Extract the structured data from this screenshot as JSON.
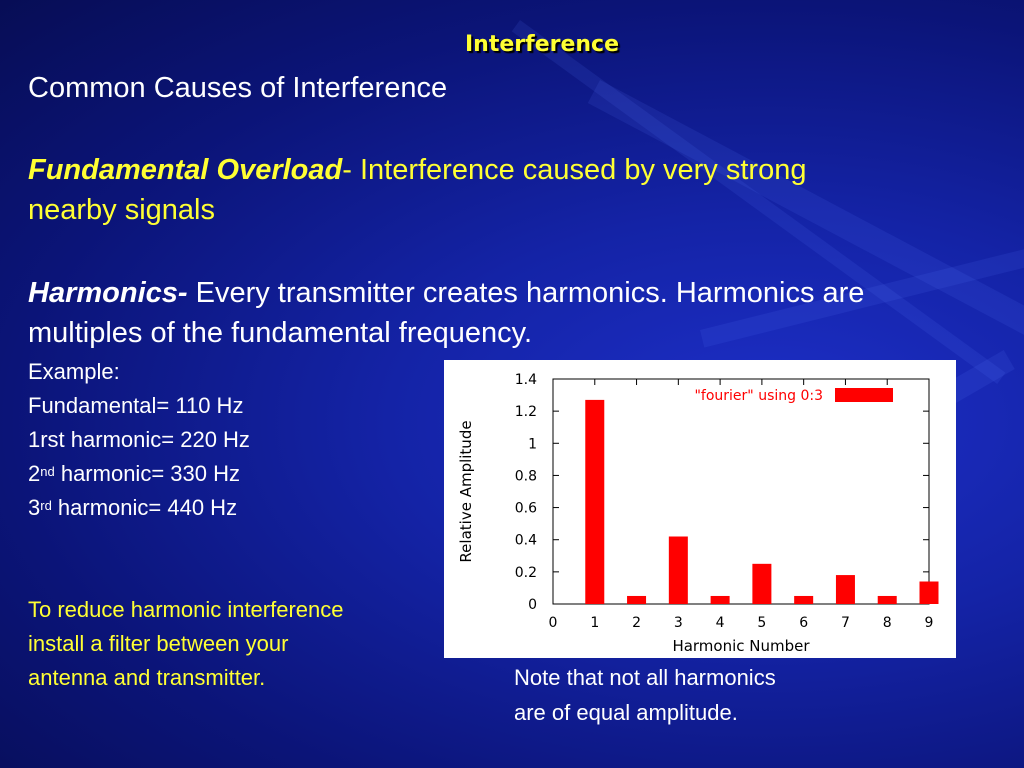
{
  "slide": {
    "title": "Interference",
    "heading": "Common Causes of Interference",
    "fundamental_overload": {
      "term": "Fundamental Overload",
      "text_line1": "- Interference caused by very strong",
      "text_line2": "nearby signals"
    },
    "harmonics": {
      "term": "Harmonics-",
      "text_line1": " Every transmitter creates harmonics. Harmonics are",
      "text_line2": "multiples of the fundamental frequency."
    },
    "example": {
      "label": "Example:",
      "fundamental": "Fundamental= 110 Hz",
      "first": "1rst harmonic= 220 Hz",
      "second_num": "2",
      "second_sup": "nd",
      "second_rest": " harmonic= 330 Hz",
      "third_num": "3",
      "third_sup": "rd",
      "third_rest": " harmonic= 440 Hz"
    },
    "filter_note": {
      "line1": "To reduce harmonic interference",
      "line2": "install a filter between your",
      "line3": "antenna and transmitter."
    },
    "amplitude_note": {
      "line1": "Note that not all harmonics",
      "line2": "are of equal amplitude."
    }
  },
  "colors": {
    "accent_yellow": "#ffff33",
    "bar_red": "#ff0000"
  },
  "chart_data": {
    "type": "bar",
    "categories": [
      1,
      2,
      3,
      4,
      5,
      6,
      7,
      8,
      9
    ],
    "series": [
      {
        "name": "\"fourier\" using 0:3",
        "values": [
          1.27,
          0.05,
          0.42,
          0.05,
          0.25,
          0.05,
          0.18,
          0.05,
          0.14
        ]
      }
    ],
    "xlabel": "Harmonic Number",
    "ylabel": "Relative Amplitude",
    "xlim": [
      0,
      9
    ],
    "ylim": [
      0,
      1.4
    ],
    "xticks": [
      "0",
      "1",
      "2",
      "3",
      "4",
      "5",
      "6",
      "7",
      "8",
      "9"
    ],
    "yticks": [
      "0",
      "0.2",
      "0.4",
      "0.6",
      "0.8",
      "1",
      "1.2",
      "1.4"
    ],
    "legend_position": "top-right"
  }
}
